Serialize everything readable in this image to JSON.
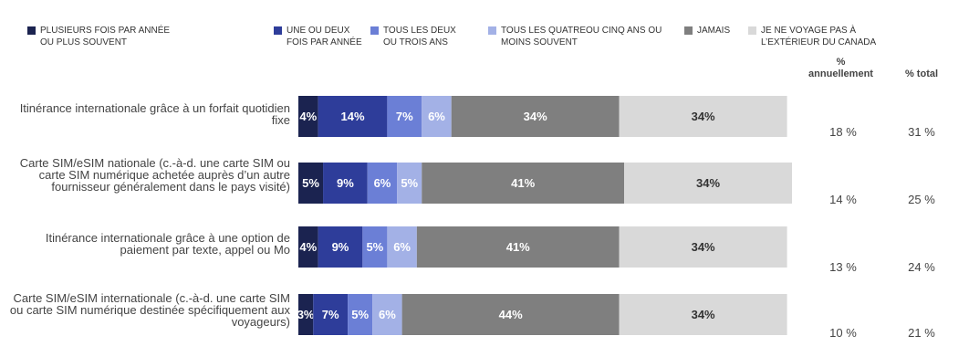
{
  "chart_data": {
    "type": "stacked-bar-horizontal",
    "categories": [
      "Itinérance internationale grâce à un forfait quotidien fixe",
      "Carte SIM/eSIM nationale (c.-à-d. une carte SIM ou carte SIM numérique achetée auprès d’un autre fournisseur généralement dans le pays visité)",
      "Itinérance internationale grâce à une option de paiement par texte, appel ou Mo",
      "Carte SIM/eSIM internationale (c.-à-d. une carte SIM ou carte SIM numérique destinée spécifiquement aux voyageurs)"
    ],
    "xlim": [
      0,
      100
    ],
    "series": [
      {
        "name": "PLUSIEURS FOIS PAR ANNÉE OU PLUS SOUVENT",
        "color": "#1b2350",
        "values": [
          4,
          5,
          4,
          3
        ],
        "value_labels": [
          "4%",
          "5%",
          "4%",
          "3%"
        ]
      },
      {
        "name": "UNE OU DEUX FOIS PAR ANNÉE",
        "color": "#2e3d9a",
        "values": [
          14,
          9,
          9,
          7
        ],
        "value_labels": [
          "14%",
          "9%",
          "9%",
          "7%"
        ]
      },
      {
        "name": "TOUS LES DEUX OU TROIS ANS",
        "color": "#6b7fd6",
        "values": [
          7,
          6,
          5,
          5
        ],
        "value_labels": [
          "7%",
          "6%",
          "5%",
          "5%"
        ]
      },
      {
        "name": "TOUS LES QUATREOU CINQ ANS OU MOINS SOUVENT",
        "color": "#a3b1e6",
        "values": [
          6,
          5,
          6,
          6
        ],
        "value_labels": [
          "6%",
          "5%",
          "6%",
          "6%"
        ]
      },
      {
        "name": "JAMAIS",
        "color": "#7f7f7f",
        "values": [
          34,
          41,
          41,
          44
        ],
        "value_labels": [
          "34%",
          "41%",
          "41%",
          "44%"
        ]
      },
      {
        "name": "JE NE VOYAGE PAS À L’EXTÉRIEUR DU CANADA",
        "color": "#d9d9d9",
        "values": [
          34,
          34,
          34,
          34
        ],
        "value_labels": [
          "34%",
          "34%",
          "34%",
          "34%"
        ]
      }
    ],
    "columns": [
      {
        "header": "% annuellement",
        "values": [
          18,
          14,
          13,
          10
        ],
        "value_labels": [
          "18 %",
          "14 %",
          "13 %",
          "10 %"
        ]
      },
      {
        "header": "% total",
        "values": [
          31,
          25,
          24,
          21
        ],
        "value_labels": [
          "31 %",
          "25 %",
          "24 %",
          "21 %"
        ]
      }
    ]
  }
}
